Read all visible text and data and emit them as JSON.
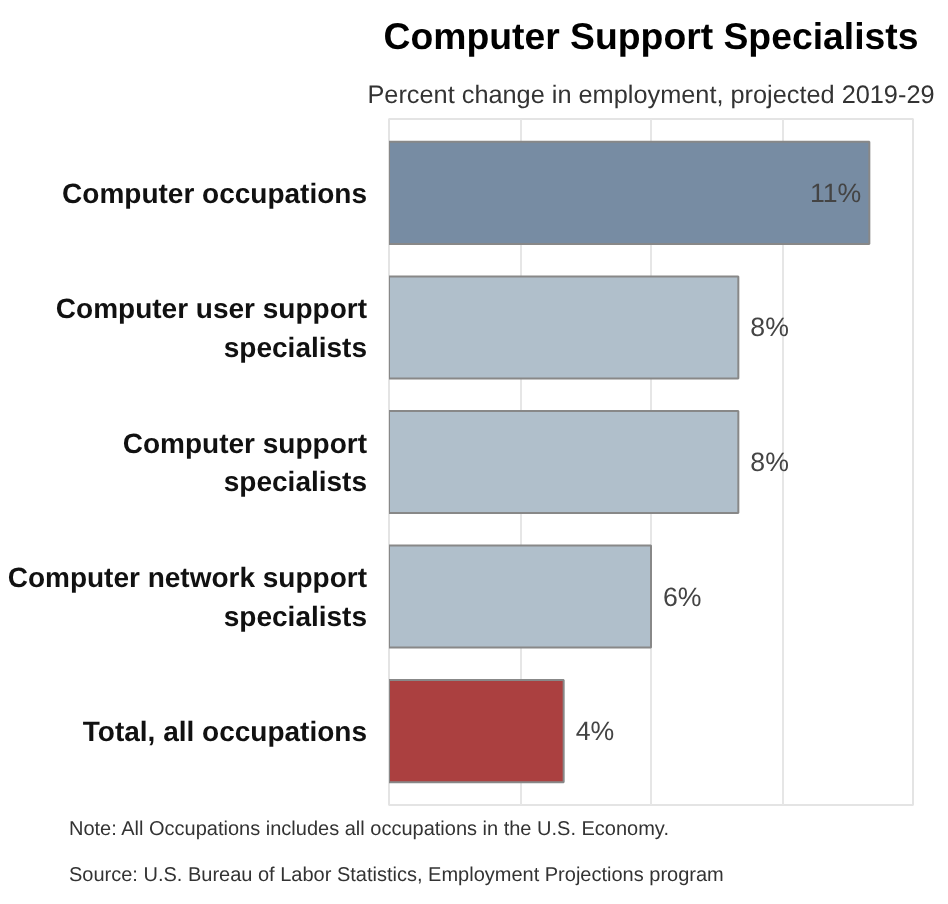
{
  "chart_data": {
    "type": "bar",
    "orientation": "horizontal",
    "title": "Computer Support Specialists",
    "subtitle": "Percent change in employment, projected 2019-29",
    "categories": [
      "Computer occupations",
      "Computer user support specialists",
      "Computer support specialists",
      "Computer network support specialists",
      "Total, all occupations"
    ],
    "values": [
      11,
      8,
      8,
      6,
      4
    ],
    "colors": [
      "#778ca3",
      "#b0bfcb",
      "#b0bfcb",
      "#b0bfcb",
      "#ab4040"
    ],
    "value_labels": [
      "11%",
      "8%",
      "8%",
      "6%",
      "4%"
    ],
    "xlim": [
      0,
      12
    ],
    "xticks": [
      {
        "value": 3,
        "label": null
      },
      {
        "value": 6,
        "label": null
      },
      {
        "value": 9,
        "label": null
      }
    ],
    "grid": "x",
    "tick_labels": "y",
    "annotations": [
      "Note: All Occupations includes all occupations in the U.S. Economy.",
      "Source: U.S. Bureau of Labor Statistics, Employment Projections program"
    ]
  }
}
